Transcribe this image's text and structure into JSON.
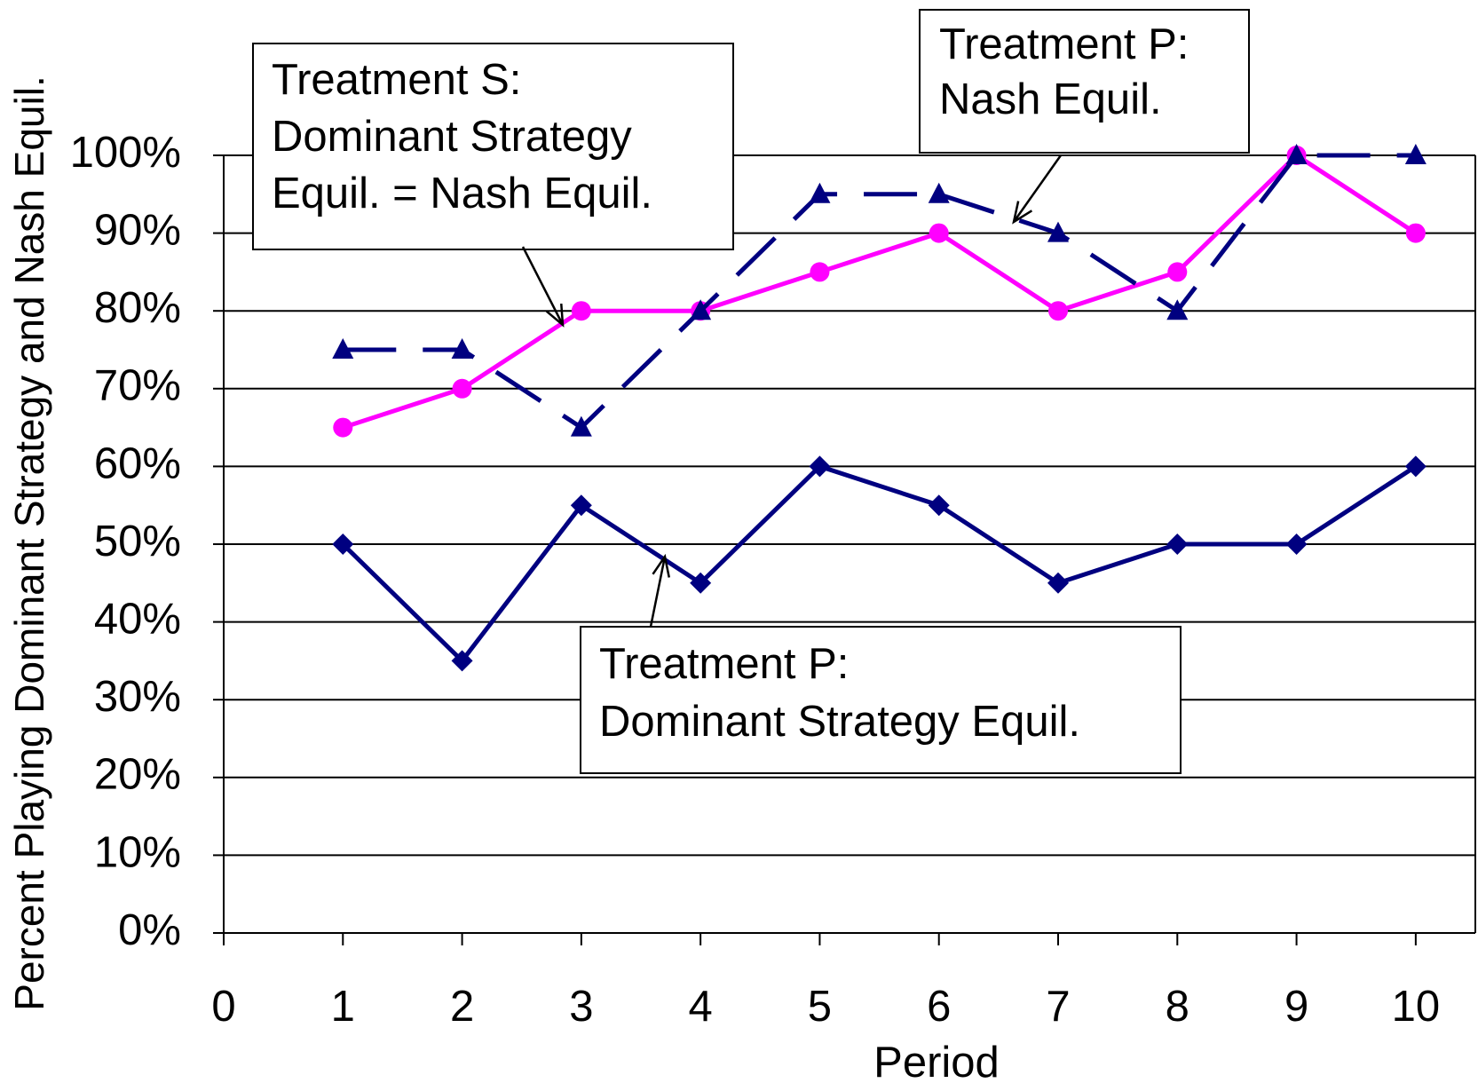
{
  "chart_data": {
    "type": "line",
    "x_label": "Period",
    "y_label": "Percent Playing Dominant Strategy and Nash Equil.",
    "x": [
      1,
      2,
      3,
      4,
      5,
      6,
      7,
      8,
      9,
      10
    ],
    "xlim": [
      0,
      10.5
    ],
    "xticks": [
      0,
      1,
      2,
      3,
      4,
      5,
      6,
      7,
      8,
      9,
      10
    ],
    "ylim": [
      0,
      100
    ],
    "yticks": [
      {
        "value": 0,
        "label": "0%"
      },
      {
        "value": 10,
        "label": "10%"
      },
      {
        "value": 20,
        "label": "20%"
      },
      {
        "value": 30,
        "label": "30%"
      },
      {
        "value": 40,
        "label": "40%"
      },
      {
        "value": 50,
        "label": "50%"
      },
      {
        "value": 60,
        "label": "60%"
      },
      {
        "value": 70,
        "label": "70%"
      },
      {
        "value": 80,
        "label": "80%"
      },
      {
        "value": 90,
        "label": "90%"
      },
      {
        "value": 100,
        "label": "100%"
      }
    ],
    "grid": true,
    "series": [
      {
        "color": "#ff00ff",
        "marker": "circle",
        "dash": false,
        "values": [
          65,
          70,
          80,
          80,
          85,
          90,
          80,
          85,
          100,
          90
        ]
      },
      {
        "color": "#000080",
        "marker": "triangle",
        "dash": true,
        "values": [
          75,
          75,
          65,
          80,
          95,
          95,
          90,
          80,
          100,
          100
        ]
      },
      {
        "color": "#000080",
        "marker": "diamond",
        "dash": false,
        "values": [
          50,
          35,
          55,
          45,
          60,
          55,
          45,
          50,
          50,
          60
        ]
      }
    ],
    "annotations": [
      {
        "lines": [
          "Treatment S:",
          "Dominant Strategy",
          "Equil. = Nash Equil."
        ]
      },
      {
        "lines": [
          "Treatment P:",
          "Nash Equil."
        ]
      },
      {
        "lines": [
          "Treatment P:",
          "Dominant Strategy Equil."
        ]
      }
    ]
  }
}
